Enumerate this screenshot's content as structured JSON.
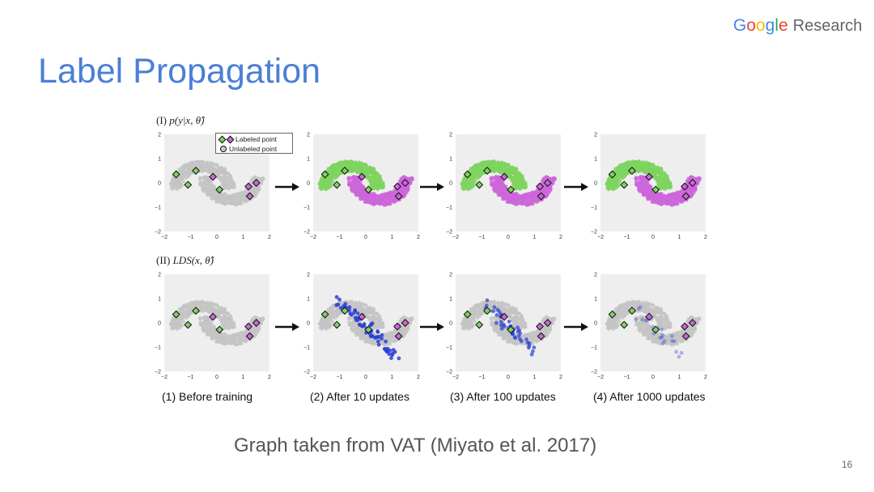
{
  "logo": {
    "brand": "Google",
    "brand_letters": [
      {
        "ch": "G",
        "color": "#4285F4"
      },
      {
        "ch": "o",
        "color": "#EA4335"
      },
      {
        "ch": "o",
        "color": "#FBBC05"
      },
      {
        "ch": "g",
        "color": "#4285F4"
      },
      {
        "ch": "l",
        "color": "#34A853"
      },
      {
        "ch": "e",
        "color": "#EA4335"
      }
    ],
    "word": "Research"
  },
  "title": "Label Propagation",
  "rows": [
    {
      "label_main": "(I) ",
      "label_math": "p(y|x, θ̂)"
    },
    {
      "label_main": "(II) ",
      "label_math": "LDS(x, θ̂)"
    }
  ],
  "legend": {
    "labeled": "Labeled point",
    "unlabeled": "Unlabeled point"
  },
  "axis_ticks": [
    "−2",
    "−1",
    "0",
    "1",
    "2"
  ],
  "stages": [
    "(1) Before training",
    "(2) After 10 updates",
    "(3) After 100 updates",
    "(4) After 1000 updates"
  ],
  "caption": "Graph taken from VAT (Miyato et al. 2017)",
  "page_number": "16",
  "colors": {
    "green": "#7ed35f",
    "magenta": "#cc66d9",
    "gray": "#c4c4c4",
    "blue": "#2a3fd6",
    "panel_bg": "#eeeeee",
    "title": "#4a7fd6"
  },
  "labeled_points": {
    "green": [
      [
        -0.8,
        0.5
      ],
      [
        -1.55,
        0.35
      ],
      [
        -1.1,
        -0.08
      ],
      [
        0.1,
        -0.28
      ]
    ],
    "magenta": [
      [
        -0.15,
        0.25
      ],
      [
        1.5,
        0.0
      ],
      [
        1.2,
        -0.15
      ],
      [
        1.25,
        -0.55
      ]
    ]
  }
}
